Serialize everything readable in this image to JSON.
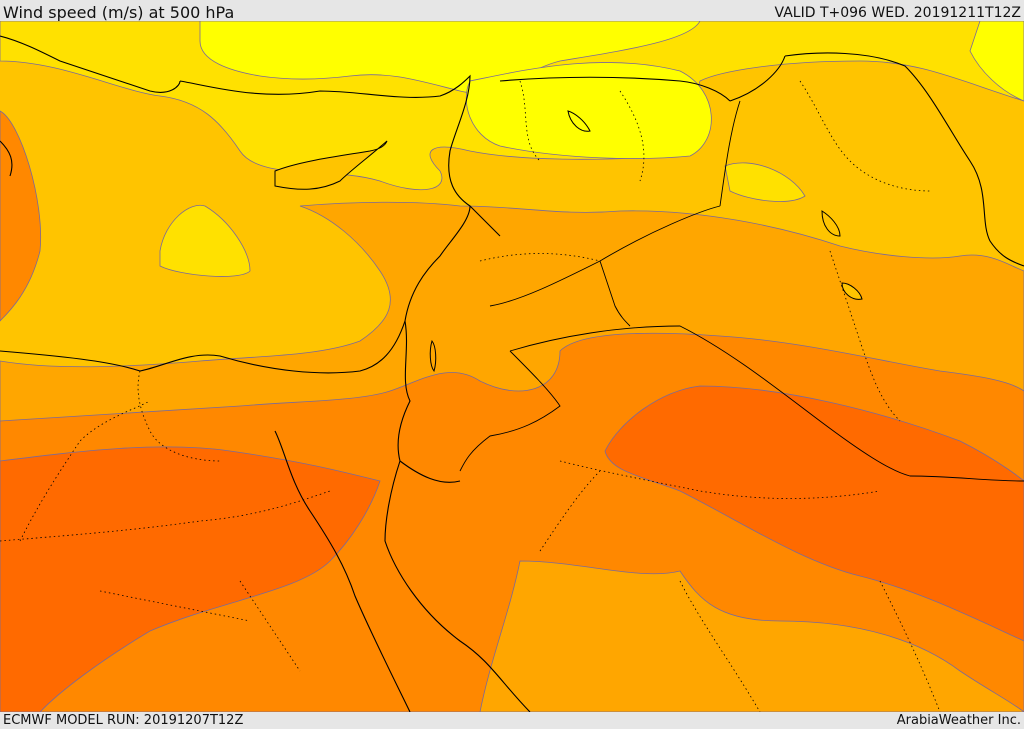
{
  "header": {
    "title": "Wind speed (m/s) at 500 hPa",
    "valid": "VALID T+096 WED. 20191211T12Z"
  },
  "footer": {
    "model_run": "ECMWF MODEL RUN: 20191207T12Z",
    "credit": "ArabiaWeather Inc."
  },
  "map": {
    "variable": "wind speed",
    "level": "500 hPa",
    "units": "m/s",
    "colors": {
      "band_1": "#ffff00",
      "band_2": "#ffe100",
      "band_3": "#ffc400",
      "band_4": "#ffa600",
      "band_5": "#ff8800",
      "band_6": "#ff6a00",
      "coastline": "#000000",
      "contour": "#5b4a8a"
    }
  }
}
